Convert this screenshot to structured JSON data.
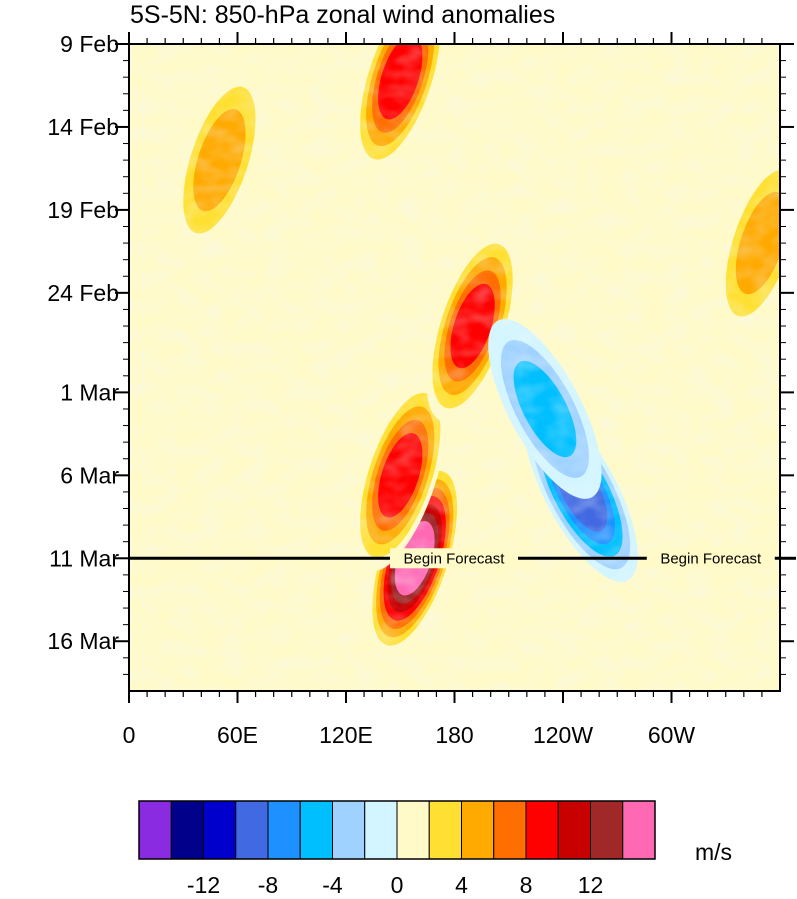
{
  "chart_data": {
    "type": "heatmap",
    "title": "5S-5N: 850-hPa zonal wind anomalies",
    "x_ticks": [
      "0",
      "60E",
      "120E",
      "180",
      "120W",
      "60W"
    ],
    "x_tick_values_deg_east": [
      0,
      60,
      120,
      180,
      240,
      300
    ],
    "xlim": [
      0,
      360
    ],
    "y_ticks": [
      "9 Feb",
      "14 Feb",
      "19 Feb",
      "24 Feb",
      "1 Mar",
      "6 Mar",
      "11 Mar",
      "16 Mar"
    ],
    "ylim": [
      "9 Feb",
      "19 Mar"
    ],
    "units": "m/s",
    "colorbar": {
      "levels": [
        -14,
        -12,
        -10,
        -8,
        -6,
        -4,
        -2,
        0,
        2,
        4,
        6,
        8,
        10,
        12,
        14
      ],
      "tick_labels": [
        "-12",
        "-8",
        "-4",
        "0",
        "4",
        "8",
        "12"
      ],
      "tick_values": [
        -12,
        -8,
        -4,
        0,
        4,
        8,
        12
      ],
      "colors": [
        "#8a2be2",
        "#00008b",
        "#0000cd",
        "#4169e1",
        "#1e90ff",
        "#00bfff",
        "#a0d2ff",
        "#d2f5ff",
        "#fffac8",
        "#ffe032",
        "#ffaa00",
        "#ff6e00",
        "#ff0000",
        "#c80000",
        "#a02828",
        "#ff69b4"
      ]
    },
    "annotations": [
      {
        "text": "Begin Forecast",
        "x_deg_east": 120,
        "date": "11 Mar"
      },
      {
        "text": "Begin Forecast",
        "x_deg_east": 262,
        "date": "11 Mar"
      }
    ],
    "forecast_start": "11 Mar",
    "features": [
      {
        "type": "positive",
        "lon": 158,
        "date": "11 Mar",
        "value": 16
      },
      {
        "type": "positive",
        "lon": 150,
        "date": "6 Mar",
        "value": 10
      },
      {
        "type": "positive",
        "lon": 190,
        "date": "26 Feb",
        "value": 9
      },
      {
        "type": "positive",
        "lon": 150,
        "date": "11 Feb",
        "value": 10
      },
      {
        "type": "negative",
        "lon": 250,
        "date": "7 Mar",
        "value": -10
      },
      {
        "type": "negative",
        "lon": 230,
        "date": "2 Mar",
        "value": -6
      },
      {
        "type": "positive",
        "lon": 50,
        "date": "16 Feb",
        "value": 6
      },
      {
        "type": "positive",
        "lon": 350,
        "date": "21 Feb",
        "value": 6
      }
    ]
  }
}
